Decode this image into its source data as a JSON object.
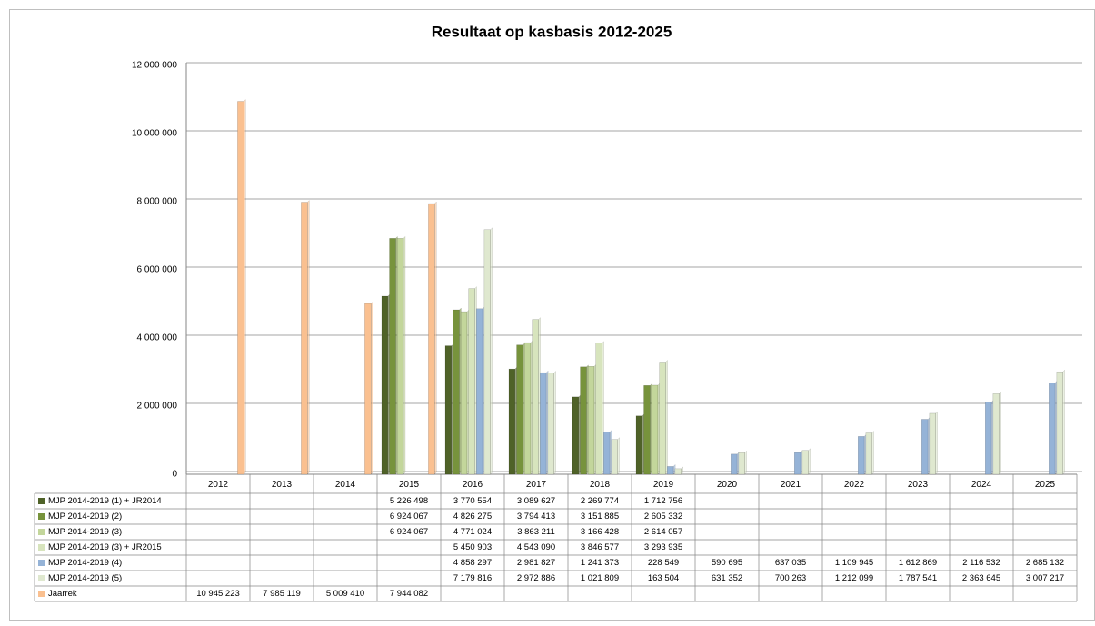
{
  "chart_data": {
    "type": "bar",
    "title": "Resultaat op kasbasis 2012-2025",
    "categories": [
      "2012",
      "2013",
      "2014",
      "2015",
      "2016",
      "2017",
      "2018",
      "2019",
      "2020",
      "2021",
      "2022",
      "2023",
      "2024",
      "2025"
    ],
    "ylim": [
      0,
      12000000
    ],
    "yticks": [
      {
        "value": 0,
        "label": "0"
      },
      {
        "value": 2000000,
        "label": "2 000 000"
      },
      {
        "value": 4000000,
        "label": "4 000 000"
      },
      {
        "value": 6000000,
        "label": "6 000 000"
      },
      {
        "value": 8000000,
        "label": "8 000 000"
      },
      {
        "value": 10000000,
        "label": "10 000 000"
      },
      {
        "value": 12000000,
        "label": "12 000 000"
      }
    ],
    "grid": true,
    "series": [
      {
        "name": "MJP 2014-2019 (1) + JR2014",
        "color": "#4f6228",
        "values": [
          null,
          null,
          null,
          5226498,
          3770554,
          3089627,
          2269774,
          1712756,
          null,
          null,
          null,
          null,
          null,
          null
        ],
        "value_labels": [
          null,
          null,
          null,
          "5 226 498",
          "3 770 554",
          "3 089 627",
          "2 269 774",
          "1 712 756",
          null,
          null,
          null,
          null,
          null,
          null
        ]
      },
      {
        "name": "MJP 2014-2019 (2)",
        "color": "#77933c",
        "values": [
          null,
          null,
          null,
          6924067,
          4826275,
          3794413,
          3151885,
          2605332,
          null,
          null,
          null,
          null,
          null,
          null
        ],
        "value_labels": [
          null,
          null,
          null,
          "6 924 067",
          "4 826 275",
          "3 794 413",
          "3 151 885",
          "2 605 332",
          null,
          null,
          null,
          null,
          null,
          null
        ]
      },
      {
        "name": "MJP 2014-2019 (3)",
        "color": "#c3d69b",
        "values": [
          null,
          null,
          null,
          6924067,
          4771024,
          3863211,
          3166428,
          2614057,
          null,
          null,
          null,
          null,
          null,
          null
        ],
        "value_labels": [
          null,
          null,
          null,
          "6 924 067",
          "4 771 024",
          "3 863 211",
          "3 166 428",
          "2 614 057",
          null,
          null,
          null,
          null,
          null,
          null
        ]
      },
      {
        "name": "MJP 2014-2019 (3) + JR2015",
        "color": "#d7e4bd",
        "values": [
          null,
          null,
          null,
          null,
          5450903,
          4543090,
          3846577,
          3293935,
          null,
          null,
          null,
          null,
          null,
          null
        ],
        "value_labels": [
          null,
          null,
          null,
          null,
          "5 450 903",
          "4 543 090",
          "3 846 577",
          "3 293 935",
          null,
          null,
          null,
          null,
          null,
          null
        ]
      },
      {
        "name": "MJP 2014-2019 (4)",
        "color": "#95b3d7",
        "values": [
          null,
          null,
          null,
          null,
          4858297,
          2981827,
          1241373,
          228549,
          590695,
          637035,
          1109945,
          1612869,
          2116532,
          2685132
        ],
        "value_labels": [
          null,
          null,
          null,
          null,
          "4 858 297",
          "2 981 827",
          "1 241 373",
          "228 549",
          "590 695",
          "637 035",
          "1 109 945",
          "1 612 869",
          "2 116 532",
          "2 685 132"
        ]
      },
      {
        "name": "MJP 2014-2019 (5)",
        "color": "#dfe8cf",
        "values": [
          null,
          null,
          null,
          null,
          7179816,
          2972886,
          1021809,
          163504,
          631352,
          700263,
          1212099,
          1787541,
          2363645,
          3007217
        ],
        "value_labels": [
          null,
          null,
          null,
          null,
          "7 179 816",
          "2 972 886",
          "1 021 809",
          "163 504",
          "631 352",
          "700 263",
          "1 212 099",
          "1 787 541",
          "2 363 645",
          "3 007 217"
        ]
      },
      {
        "name": "Jaarrek",
        "color": "#fac090",
        "values": [
          10945223,
          7985119,
          5009410,
          7944082,
          null,
          null,
          null,
          null,
          null,
          null,
          null,
          null,
          null,
          null
        ],
        "value_labels": [
          "10 945 223",
          "7 985 119",
          "5 009 410",
          "7 944 082",
          null,
          null,
          null,
          null,
          null,
          null,
          null,
          null,
          null,
          null
        ]
      }
    ]
  }
}
